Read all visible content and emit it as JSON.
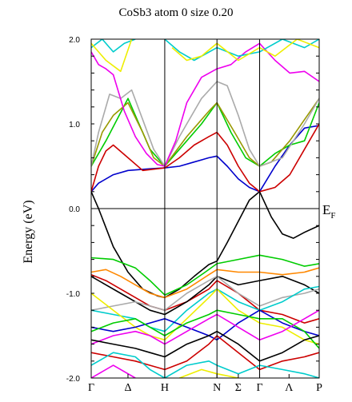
{
  "chart_data": {
    "type": "line",
    "title": "CoSb3 atom  0    size 0.20",
    "ylabel": "Energy (eV)",
    "ylim": [
      -2.0,
      2.0
    ],
    "yticks": [
      "2.0",
      "1.0",
      "0.0",
      "-1.0",
      "-2.0"
    ],
    "ytick_values": [
      2.0,
      1.0,
      0.0,
      -1.0,
      -2.0
    ],
    "k_points": [
      "Γ",
      "Δ",
      "H",
      "N",
      "Σ",
      "Γ",
      "Λ",
      "P"
    ],
    "k_positions": [
      0,
      0.5,
      1,
      1.71,
      2.0,
      2.29,
      2.69,
      3.1
    ],
    "fermi_label": "E",
    "fermi_sub": "F",
    "fermi_level": 0.0,
    "grid": false,
    "series": [
      {
        "color": "#000000",
        "x": [
          0,
          0.1,
          0.3,
          0.5,
          0.7,
          0.9,
          1.0
        ],
        "y": [
          0.2,
          0.0,
          -0.45,
          -0.75,
          -0.95,
          -1.03,
          -1.05
        ]
      },
      {
        "color": "#000000",
        "x": [
          1.0,
          1.2,
          1.4,
          1.6,
          1.71
        ],
        "y": [
          -1.05,
          -0.95,
          -0.8,
          -0.66,
          -0.62
        ]
      },
      {
        "color": "#000000",
        "x": [
          1.71,
          1.85,
          2.0,
          2.15,
          2.29
        ],
        "y": [
          -0.62,
          -0.4,
          -0.15,
          0.1,
          0.2
        ]
      },
      {
        "color": "#000000",
        "x": [
          2.29,
          2.45,
          2.6,
          2.75,
          2.9,
          3.1
        ],
        "y": [
          0.2,
          -0.1,
          -0.3,
          -0.35,
          -0.28,
          -0.2
        ]
      },
      {
        "color": "#0000cc",
        "x": [
          0,
          0.1,
          0.3,
          0.5,
          0.8,
          1.0
        ],
        "y": [
          0.2,
          0.3,
          0.4,
          0.45,
          0.47,
          0.48
        ]
      },
      {
        "color": "#0000cc",
        "x": [
          1.0,
          1.2,
          1.4,
          1.6,
          1.71
        ],
        "y": [
          0.48,
          0.5,
          0.55,
          0.6,
          0.62
        ]
      },
      {
        "color": "#0000cc",
        "x": [
          1.71,
          1.85,
          2.0,
          2.15,
          2.29
        ],
        "y": [
          0.62,
          0.5,
          0.35,
          0.25,
          0.2
        ]
      },
      {
        "color": "#0000cc",
        "x": [
          2.29,
          2.5,
          2.7,
          2.9,
          3.1
        ],
        "y": [
          0.2,
          0.5,
          0.75,
          0.95,
          0.98
        ]
      },
      {
        "color": "#cc0000",
        "x": [
          0,
          0.1,
          0.2,
          0.3,
          0.5,
          0.7,
          1.0
        ],
        "y": [
          0.2,
          0.5,
          0.68,
          0.75,
          0.6,
          0.45,
          0.48
        ]
      },
      {
        "color": "#cc0000",
        "x": [
          1.0,
          1.2,
          1.4,
          1.6,
          1.71
        ],
        "y": [
          0.48,
          0.6,
          0.75,
          0.85,
          0.9
        ]
      },
      {
        "color": "#cc0000",
        "x": [
          1.71,
          1.85,
          2.0,
          2.15,
          2.29
        ],
        "y": [
          0.9,
          0.75,
          0.5,
          0.3,
          0.2
        ]
      },
      {
        "color": "#cc0000",
        "x": [
          2.29,
          2.5,
          2.7,
          2.9,
          3.1
        ],
        "y": [
          0.2,
          0.25,
          0.4,
          0.7,
          1.0
        ]
      },
      {
        "color": "#00cc00",
        "x": [
          0,
          0.2,
          0.5,
          0.8,
          1.0
        ],
        "y": [
          0.5,
          0.8,
          1.3,
          0.7,
          0.5
        ]
      },
      {
        "color": "#00cc00",
        "x": [
          1.0,
          1.2,
          1.5,
          1.71
        ],
        "y": [
          0.5,
          0.7,
          1.0,
          1.25
        ]
      },
      {
        "color": "#00cc00",
        "x": [
          1.71,
          1.9,
          2.1,
          2.29
        ],
        "y": [
          1.25,
          0.9,
          0.6,
          0.5
        ]
      },
      {
        "color": "#00cc00",
        "x": [
          2.29,
          2.5,
          2.7,
          2.9,
          3.1
        ],
        "y": [
          0.5,
          0.65,
          0.75,
          0.8,
          1.25
        ]
      },
      {
        "color": "#999900",
        "x": [
          0,
          0.15,
          0.3,
          0.5,
          0.7,
          0.85,
          1.0
        ],
        "y": [
          0.5,
          0.9,
          1.1,
          1.25,
          0.9,
          0.6,
          0.5
        ]
      },
      {
        "color": "#999900",
        "x": [
          1.0,
          1.3,
          1.6,
          1.71
        ],
        "y": [
          0.5,
          0.85,
          1.15,
          1.25
        ]
      },
      {
        "color": "#999900",
        "x": [
          1.71,
          1.95,
          2.15,
          2.29
        ],
        "y": [
          1.25,
          0.9,
          0.6,
          0.5
        ]
      },
      {
        "color": "#999900",
        "x": [
          2.29,
          2.45,
          2.7,
          2.9,
          3.1
        ],
        "y": [
          0.5,
          0.55,
          0.8,
          1.05,
          1.3
        ]
      },
      {
        "color": "#aaaaaa",
        "x": [
          0,
          0.1,
          0.25,
          0.4,
          0.55,
          0.7,
          0.85,
          1.0
        ],
        "y": [
          0.5,
          0.9,
          1.35,
          1.3,
          1.4,
          1.05,
          0.7,
          0.5
        ]
      },
      {
        "color": "#aaaaaa",
        "x": [
          1.0,
          1.2,
          1.5,
          1.71
        ],
        "y": [
          0.5,
          0.85,
          1.3,
          1.5
        ]
      },
      {
        "color": "#aaaaaa",
        "x": [
          1.71,
          1.85,
          2.0,
          2.15,
          2.29
        ],
        "y": [
          1.5,
          1.45,
          1.1,
          0.7,
          0.5
        ]
      },
      {
        "color": "#aaaaaa",
        "x": [
          2.29,
          2.6,
          2.9,
          3.1
        ],
        "y": [
          0.5,
          0.6,
          1.0,
          1.3
        ]
      },
      {
        "color": "#ee00ee",
        "x": [
          0,
          0.1,
          0.2,
          0.3,
          0.45,
          0.6,
          0.75,
          0.9,
          1.0
        ],
        "y": [
          1.85,
          1.7,
          1.65,
          1.58,
          1.15,
          0.85,
          0.65,
          0.52,
          0.5
        ]
      },
      {
        "color": "#ee00ee",
        "x": [
          1.0,
          1.15,
          1.3,
          1.5,
          1.71
        ],
        "y": [
          0.5,
          0.8,
          1.25,
          1.55,
          1.65
        ]
      },
      {
        "color": "#ee00ee",
        "x": [
          1.71,
          1.9,
          2.1,
          2.29
        ],
        "y": [
          1.65,
          1.7,
          1.85,
          1.95
        ]
      },
      {
        "color": "#ee00ee",
        "x": [
          2.29,
          2.5,
          2.7,
          2.9,
          3.1
        ],
        "y": [
          1.95,
          1.75,
          1.6,
          1.62,
          1.5
        ]
      },
      {
        "color": "#00cccc",
        "x": [
          0,
          0.15,
          0.3,
          0.45,
          0.6
        ],
        "y": [
          1.9,
          2.0,
          1.85,
          1.95,
          2.0
        ]
      },
      {
        "color": "#00cccc",
        "x": [
          1.0,
          1.2,
          1.4,
          1.71
        ],
        "y": [
          2.0,
          1.85,
          1.75,
          1.9
        ]
      },
      {
        "color": "#00cccc",
        "x": [
          1.71,
          2.0,
          2.29,
          2.6,
          2.9,
          3.1
        ],
        "y": [
          1.9,
          1.8,
          1.85,
          2.0,
          1.9,
          2.0
        ]
      },
      {
        "color": "#eeee00",
        "x": [
          0,
          0.2,
          0.4,
          0.55
        ],
        "y": [
          1.95,
          1.75,
          1.62,
          2.0
        ]
      },
      {
        "color": "#eeee00",
        "x": [
          1.1,
          1.3,
          1.5,
          1.71
        ],
        "y": [
          1.9,
          1.75,
          1.8,
          1.95
        ]
      },
      {
        "color": "#eeee00",
        "x": [
          1.71,
          2.0,
          2.29,
          2.5,
          2.8,
          3.1
        ],
        "y": [
          1.95,
          1.75,
          1.9,
          1.8,
          2.0,
          1.9
        ]
      },
      {
        "color": "#00cc00",
        "x": [
          0,
          0.3,
          0.6,
          0.8,
          1.0
        ],
        "y": [
          -0.58,
          -0.6,
          -0.7,
          -0.85,
          -1.02
        ]
      },
      {
        "color": "#00cc00",
        "x": [
          1.0,
          1.3,
          1.55,
          1.71
        ],
        "y": [
          -1.02,
          -0.9,
          -0.75,
          -0.65
        ]
      },
      {
        "color": "#00cc00",
        "x": [
          1.71,
          2.0,
          2.29,
          2.6,
          2.9,
          3.1
        ],
        "y": [
          -0.65,
          -0.6,
          -0.55,
          -0.6,
          -0.68,
          -0.65
        ]
      },
      {
        "color": "#ff8800",
        "x": [
          0,
          0.2,
          0.4,
          0.6,
          0.8,
          1.0
        ],
        "y": [
          -0.75,
          -0.72,
          -0.8,
          -0.9,
          -1.0,
          -1.05
        ]
      },
      {
        "color": "#ff8800",
        "x": [
          1.0,
          1.3,
          1.6,
          1.71
        ],
        "y": [
          -1.05,
          -0.95,
          -0.78,
          -0.72
        ]
      },
      {
        "color": "#ff8800",
        "x": [
          1.71,
          2.0,
          2.29,
          2.6,
          2.9,
          3.1
        ],
        "y": [
          -0.72,
          -0.75,
          -0.75,
          -0.78,
          -0.75,
          -0.7
        ]
      },
      {
        "color": "#cc0000",
        "x": [
          0,
          0.2,
          0.4,
          0.6,
          0.8,
          1.0
        ],
        "y": [
          -0.78,
          -0.85,
          -0.95,
          -1.05,
          -1.15,
          -1.2
        ]
      },
      {
        "color": "#cc0000",
        "x": [
          1.0,
          1.3,
          1.6,
          1.71
        ],
        "y": [
          -1.2,
          -1.1,
          -0.95,
          -0.85
        ]
      },
      {
        "color": "#cc0000",
        "x": [
          1.71,
          2.0,
          2.29,
          2.6,
          2.9,
          3.1
        ],
        "y": [
          -0.85,
          -1.0,
          -1.2,
          -1.25,
          -1.35,
          -1.3
        ]
      },
      {
        "color": "#000000",
        "x": [
          0,
          0.2,
          0.4,
          0.6,
          0.8,
          1.0
        ],
        "y": [
          -0.8,
          -0.9,
          -1.0,
          -1.1,
          -1.2,
          -1.25
        ]
      },
      {
        "color": "#000000",
        "x": [
          1.0,
          1.3,
          1.6,
          1.71
        ],
        "y": [
          -1.25,
          -1.1,
          -0.9,
          -0.8
        ]
      },
      {
        "color": "#000000",
        "x": [
          1.71,
          2.0,
          2.29,
          2.6,
          2.9,
          3.1
        ],
        "y": [
          -0.8,
          -0.9,
          -0.85,
          -0.8,
          -0.9,
          -1.0
        ]
      },
      {
        "color": "#aaaaaa",
        "x": [
          0,
          0.3,
          0.6,
          0.8,
          1.0
        ],
        "y": [
          -1.2,
          -1.15,
          -1.1,
          -1.15,
          -1.2
        ]
      },
      {
        "color": "#aaaaaa",
        "x": [
          1.0,
          1.3,
          1.6,
          1.71
        ],
        "y": [
          -1.2,
          -1.0,
          -0.85,
          -0.8
        ]
      },
      {
        "color": "#aaaaaa",
        "x": [
          1.71,
          2.0,
          2.29,
          2.6,
          2.9,
          3.1
        ],
        "y": [
          -0.8,
          -1.0,
          -1.15,
          -1.05,
          -1.0,
          -0.95
        ]
      },
      {
        "color": "#00cccc",
        "x": [
          0,
          0.3,
          0.6,
          0.8,
          1.0
        ],
        "y": [
          -1.2,
          -1.25,
          -1.3,
          -1.4,
          -1.45
        ]
      },
      {
        "color": "#00cccc",
        "x": [
          1.0,
          1.3,
          1.6,
          1.71
        ],
        "y": [
          -1.45,
          -1.2,
          -1.0,
          -0.95
        ]
      },
      {
        "color": "#00cccc",
        "x": [
          1.71,
          2.0,
          2.29,
          2.6,
          2.9,
          3.1
        ],
        "y": [
          -0.95,
          -1.1,
          -1.2,
          -1.1,
          -0.95,
          -0.92
        ]
      },
      {
        "color": "#eeee00",
        "x": [
          0,
          0.3,
          0.6,
          0.8,
          1.0
        ],
        "y": [
          -1.0,
          -1.2,
          -1.4,
          -1.5,
          -1.55
        ]
      },
      {
        "color": "#eeee00",
        "x": [
          1.0,
          1.3,
          1.6,
          1.71
        ],
        "y": [
          -1.55,
          -1.3,
          -1.05,
          -0.95
        ]
      },
      {
        "color": "#eeee00",
        "x": [
          1.71,
          2.0,
          2.29,
          2.6,
          2.9,
          3.1
        ],
        "y": [
          -0.95,
          -1.2,
          -1.35,
          -1.4,
          -1.55,
          -1.6
        ]
      },
      {
        "color": "#0000cc",
        "x": [
          0,
          0.3,
          0.6,
          0.8,
          1.0
        ],
        "y": [
          -1.4,
          -1.45,
          -1.4,
          -1.35,
          -1.3
        ]
      },
      {
        "color": "#0000cc",
        "x": [
          1.0,
          1.3,
          1.6,
          1.71
        ],
        "y": [
          -1.3,
          -1.4,
          -1.5,
          -1.55
        ]
      },
      {
        "color": "#0000cc",
        "x": [
          1.71,
          2.0,
          2.29,
          2.6,
          2.9,
          3.1
        ],
        "y": [
          -1.55,
          -1.35,
          -1.2,
          -1.35,
          -1.45,
          -1.5
        ]
      },
      {
        "color": "#00cc00",
        "x": [
          0,
          0.3,
          0.6,
          0.8,
          1.0
        ],
        "y": [
          -1.45,
          -1.35,
          -1.3,
          -1.4,
          -1.5
        ]
      },
      {
        "color": "#00cc00",
        "x": [
          1.0,
          1.3,
          1.6,
          1.71
        ],
        "y": [
          -1.5,
          -1.35,
          -1.25,
          -1.2
        ]
      },
      {
        "color": "#00cc00",
        "x": [
          1.71,
          2.0,
          2.29,
          2.6,
          2.9,
          3.1
        ],
        "y": [
          -1.2,
          -1.25,
          -1.3,
          -1.3,
          -1.45,
          -1.65
        ]
      },
      {
        "color": "#ee00ee",
        "x": [
          0,
          0.3,
          0.6,
          0.8,
          1.0
        ],
        "y": [
          -1.6,
          -1.5,
          -1.45,
          -1.5,
          -1.6
        ]
      },
      {
        "color": "#ee00ee",
        "x": [
          1.0,
          1.3,
          1.6,
          1.71
        ],
        "y": [
          -1.6,
          -1.45,
          -1.3,
          -1.25
        ]
      },
      {
        "color": "#ee00ee",
        "x": [
          1.71,
          2.0,
          2.29,
          2.6,
          2.9,
          3.1
        ],
        "y": [
          -1.25,
          -1.4,
          -1.55,
          -1.45,
          -1.3,
          -1.2
        ]
      },
      {
        "color": "#000000",
        "x": [
          0,
          0.3,
          0.6,
          0.8,
          1.0
        ],
        "y": [
          -1.55,
          -1.6,
          -1.65,
          -1.7,
          -1.75
        ]
      },
      {
        "color": "#000000",
        "x": [
          1.0,
          1.3,
          1.6,
          1.71
        ],
        "y": [
          -1.75,
          -1.6,
          -1.5,
          -1.45
        ]
      },
      {
        "color": "#000000",
        "x": [
          1.71,
          2.0,
          2.29,
          2.6,
          2.9,
          3.1
        ],
        "y": [
          -1.45,
          -1.6,
          -1.8,
          -1.7,
          -1.55,
          -1.5
        ]
      },
      {
        "color": "#cc0000",
        "x": [
          0,
          0.3,
          0.6,
          0.8,
          1.0
        ],
        "y": [
          -1.7,
          -1.75,
          -1.8,
          -1.85,
          -1.9
        ]
      },
      {
        "color": "#cc0000",
        "x": [
          1.0,
          1.3,
          1.6,
          1.71
        ],
        "y": [
          -1.9,
          -1.8,
          -1.6,
          -1.5
        ]
      },
      {
        "color": "#cc0000",
        "x": [
          1.71,
          2.0,
          2.29,
          2.6,
          2.9,
          3.1
        ],
        "y": [
          -1.5,
          -1.7,
          -1.9,
          -1.8,
          -1.75,
          -1.7
        ]
      },
      {
        "color": "#00cccc",
        "x": [
          0,
          0.3,
          0.6,
          0.8,
          1.0
        ],
        "y": [
          -1.85,
          -1.7,
          -1.75,
          -1.9,
          -2.0
        ]
      },
      {
        "color": "#00cccc",
        "x": [
          1.0,
          1.3,
          1.6,
          1.71
        ],
        "y": [
          -2.0,
          -1.85,
          -1.8,
          -1.85
        ]
      },
      {
        "color": "#00cccc",
        "x": [
          1.71,
          2.0,
          2.29,
          2.6,
          2.9,
          3.1
        ],
        "y": [
          -1.85,
          -1.95,
          -1.85,
          -1.9,
          -1.95,
          -2.0
        ]
      },
      {
        "color": "#ee00ee",
        "x": [
          0,
          0.3,
          0.6
        ],
        "y": [
          -2.0,
          -1.85,
          -2.0
        ]
      },
      {
        "color": "#eeee00",
        "x": [
          1.2,
          1.5,
          1.71,
          2.0
        ],
        "y": [
          -2.0,
          -1.9,
          -1.95,
          -2.0
        ]
      }
    ]
  }
}
